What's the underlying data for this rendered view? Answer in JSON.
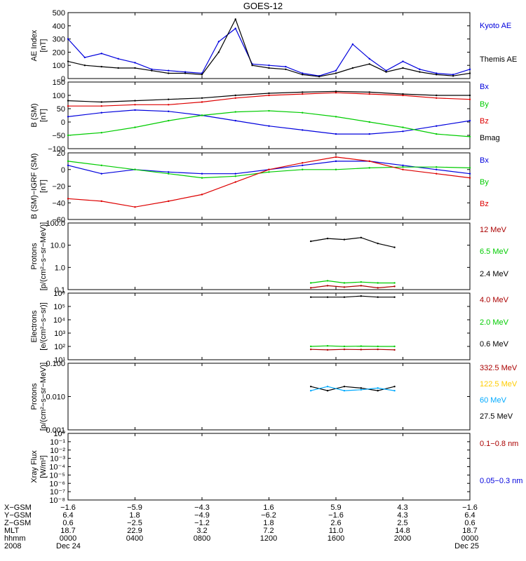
{
  "title": "GOES-12",
  "colors": {
    "black": "#000000",
    "blue": "#0000dd",
    "green": "#00cc00",
    "red": "#dd0000",
    "darkred": "#aa0000",
    "yellow": "#ffcc00",
    "cyan": "#00aaff"
  },
  "panels": [
    {
      "id": "ae",
      "ylabel_lines": [
        "AE Index",
        "[nT]"
      ],
      "scale": "linear",
      "yticks": [
        "500",
        "400",
        "300",
        "200",
        "100",
        "0"
      ],
      "legend": [
        {
          "label": "Kyoto AE",
          "color": "#0000dd"
        },
        {
          "label": "Themis AE",
          "color": "#000000"
        }
      ]
    },
    {
      "id": "bsm",
      "ylabel_lines": [
        "B (SM)",
        "[nT]"
      ],
      "scale": "linear",
      "yticks": [
        "150",
        "100",
        "50",
        "0",
        "−50",
        "−100"
      ],
      "legend": [
        {
          "label": "Bx",
          "color": "#0000dd"
        },
        {
          "label": "By",
          "color": "#00cc00"
        },
        {
          "label": "Bz",
          "color": "#dd0000"
        },
        {
          "label": "Bmag",
          "color": "#000000"
        }
      ]
    },
    {
      "id": "bdiff",
      "ylabel_lines": [
        "B (SM)−IGRF (SM)",
        "[nT]"
      ],
      "scale": "linear",
      "yticks": [
        "20",
        "0",
        "−20",
        "−40",
        "−60"
      ],
      "legend": [
        {
          "label": "Bx",
          "color": "#0000dd"
        },
        {
          "label": "By",
          "color": "#00cc00"
        },
        {
          "label": "Bz",
          "color": "#dd0000"
        }
      ]
    },
    {
      "id": "protons1",
      "ylabel_lines": [
        "Protons",
        "[p/(cm²−s−sr−MeV)]"
      ],
      "scale": "log",
      "yticks": [
        "100.0",
        "10.0",
        "1.0",
        "0.1"
      ],
      "legend": [
        {
          "label": "12 MeV",
          "color": "#aa0000"
        },
        {
          "label": "6.5 MeV",
          "color": "#00cc00"
        },
        {
          "label": "2.4 MeV",
          "color": "#000000"
        }
      ]
    },
    {
      "id": "electrons",
      "ylabel_lines": [
        "Electrons",
        "[e/(cm²−s−sr)]"
      ],
      "scale": "log",
      "yticks": [
        "10⁶",
        "10⁵",
        "10⁴",
        "10³",
        "10²",
        "10¹"
      ],
      "legend": [
        {
          "label": "4.0 MeV",
          "color": "#aa0000"
        },
        {
          "label": "2.0 MeV",
          "color": "#00cc00"
        },
        {
          "label": "0.6 MeV",
          "color": "#000000"
        }
      ]
    },
    {
      "id": "protons2",
      "ylabel_lines": [
        "Protons",
        "[p/(cm²−s−sr−MeV)]"
      ],
      "scale": "log",
      "yticks": [
        "0.100",
        "0.010",
        "0.001"
      ],
      "legend": [
        {
          "label": "332.5 MeV",
          "color": "#aa0000"
        },
        {
          "label": "122.5 MeV",
          "color": "#ffcc00"
        },
        {
          "label": "60 MeV",
          "color": "#00aaff"
        },
        {
          "label": "27.5 MeV",
          "color": "#000000"
        }
      ]
    },
    {
      "id": "xray",
      "ylabel_lines": [
        "Xray Flux",
        "[W/m²]"
      ],
      "scale": "log",
      "yticks": [
        "10⁰",
        "10⁻¹",
        "10⁻²",
        "10⁻³",
        "10⁻⁴",
        "10⁻⁵",
        "10⁻⁶",
        "10⁻⁷",
        "10⁻⁸"
      ],
      "legend": [
        {
          "label": "0.1−0.8 nm",
          "color": "#aa0000"
        },
        {
          "label": "0.05−0.3 nm",
          "color": "#0000dd"
        }
      ]
    }
  ],
  "footer": {
    "rows": [
      {
        "label": "X−GSM",
        "values": [
          "−1.6",
          "−5.9",
          "−4.3",
          "1.6",
          "5.9",
          "4.3",
          "−1.6"
        ]
      },
      {
        "label": "Y−GSM",
        "values": [
          "6.4",
          "1.8",
          "−4.9",
          "−6.2",
          "−1.6",
          "4.3",
          "6.4"
        ]
      },
      {
        "label": "Z−GSM",
        "values": [
          "0.6",
          "−2.5",
          "−1.2",
          "1.8",
          "2.6",
          "2.5",
          "0.6"
        ]
      },
      {
        "label": "MLT",
        "values": [
          "18.7",
          "22.9",
          "3.2",
          "7.2",
          "11.0",
          "14.8",
          "18.7"
        ]
      },
      {
        "label": "hhmm",
        "values": [
          "0000",
          "0400",
          "0800",
          "1200",
          "1600",
          "2000",
          "0000"
        ]
      },
      {
        "label": "2008",
        "values": [
          "Dec 24",
          "",
          "",
          "",
          "",
          "",
          "Dec 25"
        ]
      }
    ]
  },
  "chart_data": [
    {
      "type": "line",
      "panel": "ae",
      "xlabel": "hhmm",
      "ylabel": "AE Index [nT]",
      "x": [
        0,
        1,
        2,
        3,
        4,
        5,
        6,
        7,
        8,
        9,
        10,
        11,
        12,
        13,
        14,
        15,
        16,
        17,
        18,
        19,
        20,
        21,
        22,
        23,
        24
      ],
      "ylim": [
        0,
        500
      ],
      "series": [
        {
          "name": "Kyoto AE",
          "color": "#0000dd",
          "values": [
            300,
            160,
            190,
            150,
            120,
            70,
            60,
            50,
            40,
            280,
            380,
            110,
            100,
            90,
            40,
            20,
            60,
            260,
            150,
            60,
            130,
            70,
            40,
            30,
            70
          ]
        },
        {
          "name": "Themis AE",
          "color": "#000000",
          "values": [
            130,
            100,
            90,
            80,
            80,
            60,
            40,
            40,
            30,
            200,
            450,
            100,
            80,
            70,
            30,
            15,
            40,
            80,
            110,
            50,
            80,
            50,
            30,
            20,
            40
          ]
        }
      ]
    },
    {
      "type": "line",
      "panel": "bsm",
      "xlabel": "hhmm",
      "ylabel": "B (SM) [nT]",
      "x": [
        0,
        2,
        4,
        6,
        8,
        10,
        12,
        14,
        16,
        18,
        20,
        22,
        24
      ],
      "ylim": [
        -100,
        150
      ],
      "series": [
        {
          "name": "Bx",
          "color": "#0000dd",
          "values": [
            20,
            35,
            45,
            40,
            25,
            5,
            -15,
            -30,
            -45,
            -45,
            -35,
            -15,
            5
          ]
        },
        {
          "name": "By",
          "color": "#00cc00",
          "values": [
            -50,
            -40,
            -20,
            5,
            25,
            38,
            42,
            35,
            20,
            0,
            -20,
            -45,
            -55
          ]
        },
        {
          "name": "Bz",
          "color": "#dd0000",
          "values": [
            60,
            60,
            65,
            65,
            75,
            90,
            100,
            105,
            110,
            105,
            100,
            90,
            85
          ]
        },
        {
          "name": "Bmag",
          "color": "#000000",
          "values": [
            80,
            75,
            80,
            85,
            90,
            100,
            108,
            112,
            115,
            112,
            105,
            100,
            100
          ]
        }
      ]
    },
    {
      "type": "line",
      "panel": "bdiff",
      "xlabel": "hhmm",
      "ylabel": "B (SM)−IGRF (SM) [nT]",
      "x": [
        0,
        2,
        4,
        6,
        8,
        10,
        12,
        14,
        16,
        18,
        20,
        22,
        24
      ],
      "ylim": [
        -60,
        20
      ],
      "series": [
        {
          "name": "Bx",
          "color": "#0000dd",
          "values": [
            5,
            -5,
            0,
            -3,
            -5,
            -5,
            0,
            5,
            10,
            10,
            5,
            0,
            -5
          ]
        },
        {
          "name": "By",
          "color": "#00cc00",
          "values": [
            10,
            5,
            0,
            -5,
            -10,
            -8,
            -3,
            0,
            0,
            2,
            3,
            3,
            2
          ]
        },
        {
          "name": "Bz",
          "color": "#dd0000",
          "values": [
            -35,
            -38,
            -45,
            -38,
            -30,
            -15,
            0,
            8,
            15,
            10,
            0,
            -5,
            -10
          ]
        }
      ]
    },
    {
      "type": "line",
      "panel": "protons1",
      "xlabel": "hhmm",
      "ylabel": "Protons [p/(cm²−s−sr−MeV)]",
      "scale": "log",
      "x": [
        14.5,
        15.5,
        16.5,
        17.5,
        18.5,
        19.5
      ],
      "ylim": [
        0.1,
        100
      ],
      "series": [
        {
          "name": "2.4 MeV",
          "color": "#000000",
          "values": [
            15,
            20,
            18,
            22,
            12,
            8
          ]
        },
        {
          "name": "6.5 MeV",
          "color": "#00cc00",
          "values": [
            0.2,
            0.25,
            0.2,
            0.22,
            0.2,
            0.2
          ]
        },
        {
          "name": "12 MeV",
          "color": "#aa0000",
          "values": [
            0.12,
            0.15,
            0.13,
            0.15,
            0.12,
            0.14
          ]
        }
      ]
    },
    {
      "type": "line",
      "panel": "electrons",
      "xlabel": "hhmm",
      "ylabel": "Electrons [e/(cm²−s−sr)]",
      "scale": "log",
      "x": [
        14.5,
        15.5,
        16.5,
        17.5,
        18.5,
        19.5
      ],
      "ylim": [
        10,
        1000000
      ],
      "series": [
        {
          "name": "0.6 MeV",
          "color": "#000000",
          "values": [
            500000,
            500000,
            500000,
            600000,
            500000,
            500000
          ]
        },
        {
          "name": "2.0 MeV",
          "color": "#00cc00",
          "values": [
            100,
            110,
            100,
            105,
            100,
            100
          ]
        },
        {
          "name": "4.0 MeV",
          "color": "#aa0000",
          "values": [
            60,
            55,
            60,
            58,
            60,
            55
          ]
        }
      ]
    },
    {
      "type": "line",
      "panel": "protons2",
      "xlabel": "hhmm",
      "ylabel": "Protons [p/(cm²−s−sr−MeV)]",
      "scale": "log",
      "x": [
        14.5,
        15.5,
        16.5,
        17.5,
        18.5,
        19.5
      ],
      "ylim": [
        0.001,
        0.1
      ],
      "series": [
        {
          "name": "27.5 MeV",
          "color": "#000000",
          "values": [
            0.02,
            0.015,
            0.02,
            0.018,
            0.015,
            0.02
          ]
        },
        {
          "name": "60 MeV",
          "color": "#00aaff",
          "values": [
            0.015,
            0.02,
            0.015,
            0.016,
            0.018,
            0.015
          ]
        }
      ]
    }
  ]
}
